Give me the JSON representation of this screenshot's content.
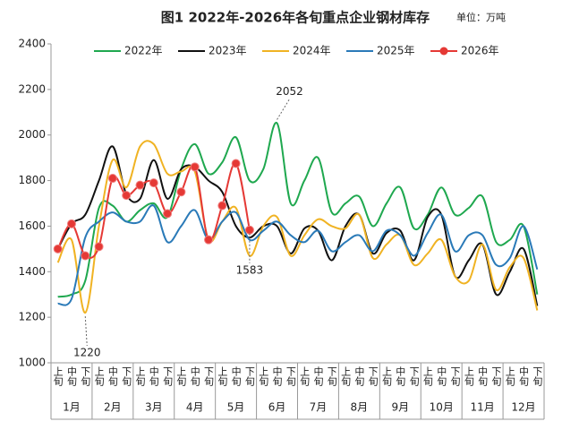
{
  "chart_data": {
    "type": "line",
    "title": "图1 2022年-2026年各旬重点企业钢材库存",
    "unit": "单位：万吨",
    "categories": [
      "上旬",
      "中旬",
      "下旬",
      "上旬",
      "中旬",
      "下旬",
      "上旬",
      "中旬",
      "下旬",
      "上旬",
      "中旬",
      "下旬",
      "上旬",
      "中旬",
      "下旬",
      "上旬",
      "中旬",
      "下旬",
      "上旬",
      "中旬",
      "下旬",
      "上旬",
      "中旬",
      "下旬",
      "上旬",
      "中旬",
      "下旬",
      "上旬",
      "中旬",
      "下旬",
      "上旬",
      "中旬",
      "下旬",
      "上旬",
      "中旬",
      "下旬"
    ],
    "months": [
      "1月",
      "2月",
      "3月",
      "4月",
      "5月",
      "6月",
      "7月",
      "8月",
      "9月",
      "10月",
      "11月",
      "12月"
    ],
    "ylim": [
      1000,
      2400
    ],
    "yticks": [
      1000,
      1200,
      1400,
      1600,
      1800,
      2000,
      2200,
      2400
    ],
    "grid": false,
    "legend": "top",
    "series": [
      {
        "name": "2022年",
        "color": "#1fa84f",
        "values": [
          1290,
          1300,
          1360,
          1680,
          1690,
          1620,
          1670,
          1700,
          1640,
          1850,
          1960,
          1830,
          1880,
          1990,
          1800,
          1850,
          2052,
          1700,
          1800,
          1900,
          1660,
          1700,
          1730,
          1600,
          1700,
          1770,
          1590,
          1650,
          1770,
          1650,
          1680,
          1730,
          1530,
          1540,
          1600,
          1300
        ]
      },
      {
        "name": "2023年",
        "color": "#111111",
        "values": [
          1500,
          1610,
          1650,
          1800,
          1950,
          1740,
          1720,
          1890,
          1720,
          1850,
          1860,
          1800,
          1750,
          1600,
          1550,
          1600,
          1600,
          1480,
          1590,
          1580,
          1450,
          1600,
          1650,
          1480,
          1570,
          1580,
          1450,
          1640,
          1650,
          1380,
          1450,
          1520,
          1300,
          1400,
          1500,
          1250
        ]
      },
      {
        "name": "2024年",
        "color": "#f0b323",
        "values": [
          1440,
          1540,
          1220,
          1600,
          1890,
          1770,
          1950,
          1960,
          1830,
          1840,
          1840,
          1540,
          1620,
          1680,
          1470,
          1600,
          1640,
          1470,
          1560,
          1630,
          1600,
          1590,
          1650,
          1460,
          1520,
          1560,
          1430,
          1480,
          1540,
          1380,
          1360,
          1520,
          1320,
          1420,
          1460,
          1230
        ]
      },
      {
        "name": "2025年",
        "color": "#2a7ab8",
        "values": [
          1260,
          1280,
          1550,
          1620,
          1660,
          1620,
          1620,
          1690,
          1530,
          1600,
          1670,
          1540,
          1620,
          1660,
          1540,
          1580,
          1620,
          1560,
          1530,
          1580,
          1490,
          1530,
          1560,
          1490,
          1580,
          1560,
          1470,
          1570,
          1650,
          1490,
          1560,
          1560,
          1430,
          1460,
          1600,
          1410
        ]
      },
      {
        "name": "2026年",
        "color": "#e53935",
        "markers": true,
        "values": [
          1500,
          1610,
          1470,
          1510,
          1810,
          1735,
          1780,
          1790,
          1655,
          1750,
          1860,
          1540,
          1690,
          1875,
          1583,
          null,
          null,
          null,
          null,
          null,
          null,
          null,
          null,
          null,
          null,
          null,
          null,
          null,
          null,
          null,
          null,
          null,
          null,
          null,
          null,
          null
        ]
      }
    ],
    "annotations": [
      {
        "text": "2052",
        "series": 0,
        "index": 16
      },
      {
        "text": "1220",
        "series": 2,
        "index": 2
      },
      {
        "text": "1583",
        "series": 4,
        "index": 14
      }
    ]
  }
}
